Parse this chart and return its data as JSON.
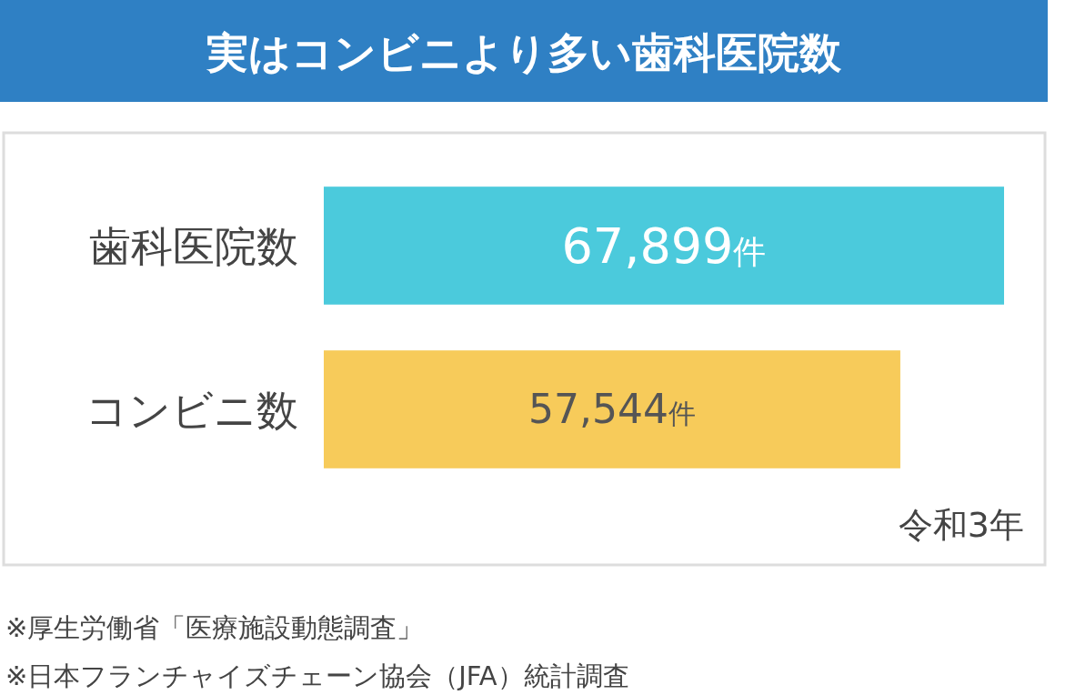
{
  "chart_data": {
    "type": "bar",
    "orientation": "horizontal",
    "title": "実はコンビニより多い歯科医院数",
    "categories": [
      "歯科医院数",
      "コンビニ数"
    ],
    "values": [
      67899,
      57544
    ],
    "colors": [
      "#4bcadc",
      "#f7cb5a"
    ],
    "value_labels": [
      "67,899件",
      "57,544件"
    ],
    "annotations": [
      "令和3年",
      "※厚生労働省「医療施設動態調査」",
      "※日本フランチャイズチェーン協会（JFA）統計調査"
    ]
  }
}
